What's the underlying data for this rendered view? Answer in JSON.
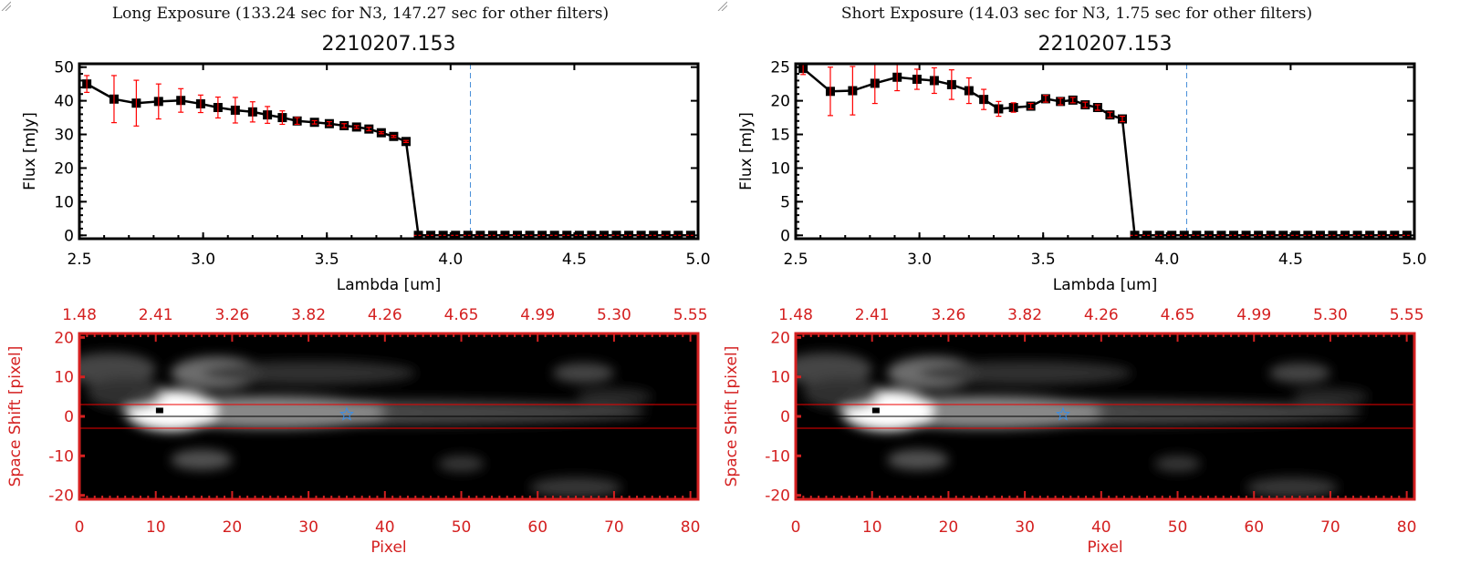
{
  "chart_data": [
    {
      "type": "line",
      "panel_title": "Long Exposure (133.24 sec for N3, 147.27 sec for other filters)",
      "title": "2210207.153",
      "xlabel": "Lambda [um]",
      "ylabel": "Flux [mJy]",
      "xlim": [
        2.5,
        5.0
      ],
      "ylim": [
        -1,
        51
      ],
      "xticks": [
        "2.5",
        "3.0",
        "3.5",
        "4.0",
        "4.5",
        "5.0"
      ],
      "yticks": [
        "0",
        "10",
        "20",
        "30",
        "40",
        "50"
      ],
      "vline_x": 4.08,
      "x": [
        2.53,
        2.64,
        2.73,
        2.82,
        2.91,
        2.99,
        3.06,
        3.13,
        3.2,
        3.26,
        3.32,
        3.38,
        3.45,
        3.51,
        3.57,
        3.62,
        3.67,
        3.72,
        3.77,
        3.82,
        3.87,
        3.92,
        3.97,
        4.02,
        4.07,
        4.12,
        4.17,
        4.22,
        4.27,
        4.32,
        4.37,
        4.42,
        4.47,
        4.52,
        4.57,
        4.62,
        4.67,
        4.72,
        4.77,
        4.82,
        4.87,
        4.92,
        4.97
      ],
      "y": [
        45.0,
        40.5,
        39.3,
        39.8,
        40.1,
        39.1,
        38.0,
        37.2,
        36.7,
        35.8,
        35.0,
        34.0,
        33.6,
        33.2,
        32.6,
        32.2,
        31.6,
        30.5,
        29.4,
        27.9,
        0,
        0,
        0,
        0,
        0,
        0,
        0,
        0,
        0,
        0,
        0,
        0,
        0,
        0,
        0,
        0,
        0,
        0,
        0,
        0,
        0,
        0,
        0
      ],
      "yerr": [
        2.5,
        7.0,
        6.8,
        5.2,
        3.5,
        2.6,
        3.1,
        3.8,
        3.0,
        2.5,
        2.0,
        1.0,
        0.5,
        0.6,
        0.6,
        0.4,
        0.5,
        0.3,
        0.3,
        0.3,
        0,
        0,
        0,
        0,
        0,
        0,
        0,
        0,
        0,
        0,
        0,
        0,
        0,
        0,
        0,
        0,
        0,
        0,
        0,
        0,
        0,
        0,
        0
      ],
      "image": {
        "xlabel": "Pixel",
        "ylabel": "Space Shift [pixel]",
        "xlim": [
          0,
          81
        ],
        "ylim": [
          -21,
          21
        ],
        "xticks": [
          "0",
          "10",
          "20",
          "30",
          "40",
          "50",
          "60",
          "70",
          "80"
        ],
        "yticks": [
          "-20",
          "-10",
          "0",
          "10",
          "20"
        ],
        "top_ticks": [
          "1.48",
          "2.41",
          "3.26",
          "3.82",
          "4.26",
          "4.65",
          "4.99",
          "5.30",
          "5.55"
        ],
        "aperture": [
          -3,
          3
        ],
        "peak": [
          10.5,
          1.5
        ],
        "star": [
          35,
          0.5
        ]
      }
    },
    {
      "type": "line",
      "panel_title": "Short Exposure (14.03 sec for N3, 1.75 sec for other filters)",
      "title": "2210207.153",
      "xlabel": "Lambda [um]",
      "ylabel": "Flux [mJy]",
      "xlim": [
        2.5,
        5.0
      ],
      "ylim": [
        -0.5,
        25.5
      ],
      "xticks": [
        "2.5",
        "3.0",
        "3.5",
        "4.0",
        "4.5",
        "5.0"
      ],
      "yticks": [
        "0",
        "5",
        "10",
        "15",
        "20",
        "25"
      ],
      "vline_x": 4.08,
      "x": [
        2.53,
        2.64,
        2.73,
        2.82,
        2.91,
        2.99,
        3.06,
        3.13,
        3.2,
        3.26,
        3.32,
        3.38,
        3.45,
        3.51,
        3.57,
        3.62,
        3.67,
        3.72,
        3.77,
        3.82,
        3.87,
        3.92,
        3.97,
        4.02,
        4.07,
        4.12,
        4.17,
        4.22,
        4.27,
        4.32,
        4.37,
        4.42,
        4.47,
        4.52,
        4.57,
        4.62,
        4.67,
        4.72,
        4.77,
        4.82,
        4.87,
        4.92,
        4.97
      ],
      "y": [
        24.8,
        21.4,
        21.5,
        22.6,
        23.5,
        23.2,
        23.0,
        22.4,
        21.5,
        20.2,
        18.8,
        19.0,
        19.2,
        20.3,
        19.9,
        20.1,
        19.4,
        19.0,
        17.9,
        17.3,
        0,
        0,
        0,
        0,
        0,
        0,
        0,
        0,
        0,
        0,
        0,
        0,
        0,
        0,
        0,
        0,
        0,
        0,
        0,
        0,
        0,
        0,
        0
      ],
      "yerr": [
        0.9,
        3.6,
        3.6,
        3.0,
        2.0,
        1.5,
        1.9,
        2.2,
        1.9,
        1.5,
        1.1,
        0.7,
        0.4,
        0.5,
        0.5,
        0.4,
        0.4,
        0.4,
        0.4,
        0.4,
        0,
        0,
        0,
        0,
        0,
        0,
        0,
        0,
        0,
        0,
        0,
        0,
        0,
        0,
        0,
        0,
        0,
        0,
        0,
        0,
        0,
        0,
        0
      ],
      "image": {
        "xlabel": "Pixel",
        "ylabel": "Space Shift [pixel]",
        "xlim": [
          0,
          81
        ],
        "ylim": [
          -21,
          21
        ],
        "xticks": [
          "0",
          "10",
          "20",
          "30",
          "40",
          "50",
          "60",
          "70",
          "80"
        ],
        "yticks": [
          "-20",
          "-10",
          "0",
          "10",
          "20"
        ],
        "top_ticks": [
          "1.48",
          "2.41",
          "3.26",
          "3.82",
          "4.26",
          "4.65",
          "4.99",
          "5.30",
          "5.55"
        ],
        "aperture": [
          -3,
          3
        ],
        "peak": [
          10.5,
          1.5
        ],
        "star": [
          35,
          0.5
        ]
      }
    }
  ],
  "colors": {
    "axis": "#000000",
    "err": "#ff0000",
    "image_axis": "#d42020",
    "vline": "#4a90d9",
    "star": "#3a8ee6"
  }
}
